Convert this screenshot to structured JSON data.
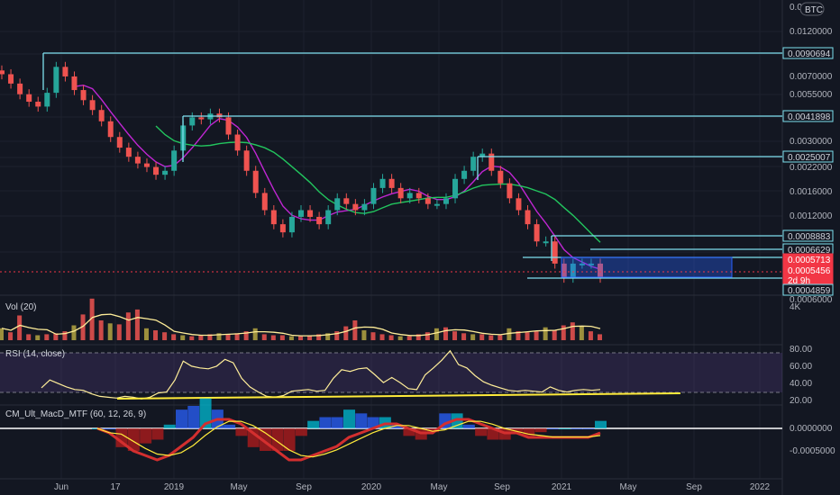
{
  "symbol_badge": "BTC",
  "price_axis": {
    "top_partial": "0.0",
    "ticks": [
      "0.0120000",
      "0.0070000",
      "0.0055000",
      "0.0030000",
      "0.0022000",
      "0.0016000",
      "0.0012000",
      "0.0006000"
    ]
  },
  "level_labels": [
    {
      "text": "0.0090694",
      "color": "#7ee0ef",
      "kind": "outline"
    },
    {
      "text": "0.0041898",
      "color": "#7ee0ef",
      "kind": "outline"
    },
    {
      "text": "0.0025007",
      "color": "#7ee0ef",
      "kind": "outline"
    },
    {
      "text": "0.0008883",
      "color": "#7ee0ef",
      "kind": "outline"
    },
    {
      "text": "0.0006629",
      "color": "#7ee0ef",
      "kind": "outline"
    },
    {
      "text": "0.0005713",
      "color": "#f23645",
      "kind": "fill"
    },
    {
      "text": "0.0005456",
      "color": "#f23645",
      "kind": "fill"
    },
    {
      "text": "2d 9h",
      "color": "#f23645",
      "kind": "fill"
    },
    {
      "text": "0.0004859",
      "color": "#7ee0ef",
      "kind": "outline"
    }
  ],
  "vol_panel": {
    "title": "Vol (20)",
    "axis_label": "4K"
  },
  "rsi_panel": {
    "title": "RSI (14, close)",
    "ticks": [
      "80.00",
      "60.00",
      "40.00",
      "20.00"
    ]
  },
  "macd_panel": {
    "title": "CM_Ult_MacD_MTF (60, 12, 26, 9)",
    "ticks": [
      "0.0000000",
      "-0.0005000"
    ]
  },
  "time_axis": [
    "Jun",
    "17",
    "2019",
    "May",
    "Sep",
    "2020",
    "May",
    "Sep",
    "2021",
    "May",
    "Sep",
    "2022"
  ],
  "colors": {
    "background": "#131722",
    "up": "#26a69a",
    "down": "#ef5350",
    "level_line": "#7ee0ef",
    "ma_fast": "#c026d3",
    "ma_slow": "#22c55e",
    "box": "#2962ff",
    "rsi": "#ffee99",
    "rsi_band": "#7e57c2",
    "macd_blue": "#2962ff",
    "macd_cyan": "#00bcd4",
    "macd_red": "#b71c1c",
    "trend_yellow": "#ffeb3b"
  },
  "chart_data": {
    "type": "line",
    "y_scale": "log",
    "y_range_visible": [
      0.00045,
      0.016
    ],
    "horizontal_levels": [
      0.0090694,
      0.0041898,
      0.0025007,
      0.0008883,
      0.0006629,
      0.0004859
    ],
    "last_price": 0.0005456,
    "prev_close": 0.0005713,
    "close_approx": [
      0.007,
      0.0062,
      0.0054,
      0.0049,
      0.0046,
      0.0055,
      0.0077,
      0.0068,
      0.0057,
      0.005,
      0.0044,
      0.0038,
      0.0031,
      0.0027,
      0.0024,
      0.0022,
      0.0021,
      0.0019,
      0.002,
      0.0026,
      0.0036,
      0.004,
      0.0039,
      0.0042,
      0.004,
      0.0032,
      0.0026,
      0.002,
      0.0015,
      0.0012,
      0.001,
      0.0009,
      0.0011,
      0.0012,
      0.0011,
      0.001,
      0.0012,
      0.0014,
      0.0013,
      0.0012,
      0.0013,
      0.0016,
      0.0018,
      0.0016,
      0.0014,
      0.0015,
      0.0014,
      0.0013,
      0.0013,
      0.0014,
      0.0018,
      0.002,
      0.0024,
      0.0025,
      0.002,
      0.0017,
      0.0014,
      0.0012,
      0.001,
      0.0008,
      0.0008,
      0.0006,
      0.0005,
      0.0006,
      0.0006,
      0.0006,
      0.0005
    ],
    "rsi_approx": [
      35,
      44,
      40,
      36,
      33,
      32,
      28,
      25,
      24,
      23,
      25,
      24,
      22,
      24,
      29,
      30,
      44,
      66,
      60,
      58,
      57,
      60,
      68,
      64,
      46,
      36,
      30,
      25,
      24,
      26,
      31,
      32,
      33,
      31,
      32,
      46,
      56,
      54,
      57,
      58,
      50,
      41,
      47,
      41,
      34,
      33,
      50,
      58,
      67,
      78,
      62,
      58,
      49,
      42,
      38,
      35,
      32,
      31,
      32,
      31,
      30,
      36,
      32,
      30,
      32,
      33,
      32,
      33
    ],
    "macd_approx": [
      -0.0,
      -0.0001,
      -0.0003,
      -0.0005,
      -0.0006,
      -0.0007,
      -0.0006,
      -0.0004,
      -0.0002,
      0.0001,
      0.0002,
      0.0002,
      0.0001,
      -0.0001,
      -0.0003,
      -0.0005,
      -0.0007,
      -0.0007,
      -0.0006,
      -0.0005,
      -0.0004,
      -0.0002,
      -0.0001,
      0.0,
      0.0001,
      0.0001,
      0.0,
      -0.0001,
      -0.0001,
      0.0001,
      0.0002,
      0.0002,
      0.0001,
      0.0,
      -0.0001,
      -0.0001,
      -0.0002,
      -0.0002,
      -0.0002,
      -0.0002,
      -0.0002,
      -0.0002,
      -0.0001
    ],
    "volume_approx_k": [
      1.2,
      0.8,
      2.5,
      0.6,
      0.5,
      0.6,
      0.7,
      0.9,
      1.5,
      2.6,
      4.2,
      2.0,
      1.7,
      1.6,
      2.8,
      3.1,
      1.2,
      1.0,
      0.8,
      0.6,
      0.5,
      0.4,
      0.5,
      0.6,
      0.7,
      0.6,
      0.7,
      0.9,
      1.2,
      0.6,
      0.5,
      0.5,
      0.4,
      0.4,
      0.5,
      0.6,
      0.7,
      0.9,
      1.4,
      2.0,
      1.0,
      0.8,
      0.6,
      0.5,
      0.4,
      0.4,
      0.6,
      0.8,
      1.2,
      1.3,
      0.9,
      0.7,
      0.6,
      0.6,
      0.5,
      0.5,
      1.2,
      0.9,
      0.8,
      0.9,
      1.3,
      1.0,
      1.5,
      1.8,
      1.4,
      0.9,
      0.6
    ]
  }
}
